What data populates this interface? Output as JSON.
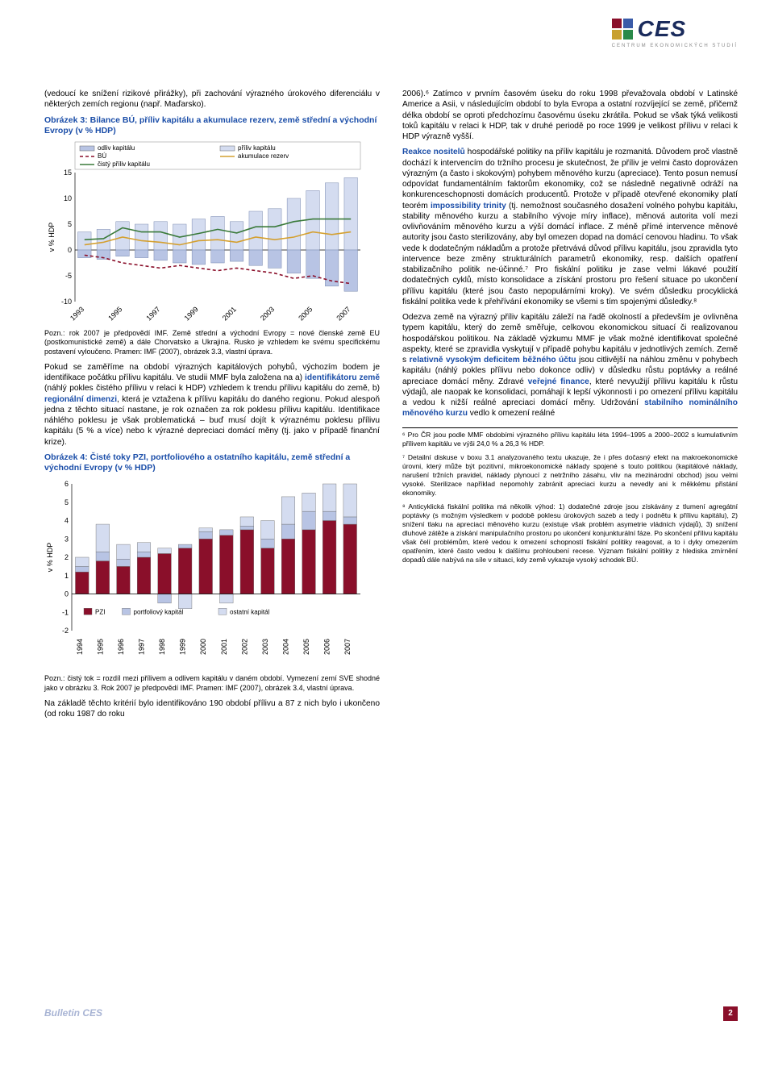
{
  "logo": {
    "text": "CES",
    "subtitle": "CENTRUM EKONOMICKÝCH STUDIÍ",
    "colors": [
      "#8a0f2a",
      "#3a5ba8",
      "#c8a030",
      "#2a8a4a"
    ]
  },
  "left": {
    "intro": "(vedoucí ke snížení rizikové přirážky), při zachování výrazného úrokového diferenciálu v některých zemích regionu (např. Maďarsko).",
    "chart3_title": "Obrázek 3: Bilance BÚ, příliv kapitálu a akumulace rezerv, země střední a východní Evropy (v % HDP)",
    "chart3": {
      "type": "bar+line",
      "y_label": "v % HDP",
      "ylim": [
        -10,
        15
      ],
      "yticks": [
        -10,
        -5,
        0,
        5,
        10,
        15
      ],
      "xticks": [
        "1993",
        "1995",
        "1997",
        "1999",
        "2001",
        "2003",
        "2005",
        "2007"
      ],
      "years": [
        1993,
        1994,
        1995,
        1996,
        1997,
        1998,
        1999,
        2000,
        2001,
        2002,
        2003,
        2004,
        2005,
        2006,
        2007
      ],
      "series": {
        "odliv_kapitalu": {
          "label": "odliv kapitálu",
          "color": "#b8c4e4",
          "type": "bar",
          "values": [
            -1.5,
            -1.8,
            -1.2,
            -1.5,
            -2.0,
            -2.5,
            -2.8,
            -2.5,
            -2.2,
            -3.0,
            -3.5,
            -4.5,
            -5.5,
            -7.0,
            -8.0
          ]
        },
        "priliv_kapitalu": {
          "label": "příliv kapitálu",
          "color": "#d4dcf0",
          "type": "bar",
          "values": [
            3.5,
            4.0,
            5.5,
            5.0,
            5.5,
            5.0,
            6.0,
            6.5,
            5.5,
            7.5,
            8.0,
            10.0,
            11.5,
            13.0,
            14.0
          ]
        },
        "BU": {
          "label": "BÚ",
          "color": "#8a0f2a",
          "type": "line",
          "dash": "4,3",
          "values": [
            -1.0,
            -1.5,
            -2.5,
            -3.0,
            -3.5,
            -3.0,
            -3.5,
            -4.0,
            -3.5,
            -4.0,
            -4.5,
            -5.5,
            -5.0,
            -6.0,
            -6.5
          ]
        },
        "akumulace_rezerv": {
          "label": "akumulace rezerv",
          "color": "#d4a030",
          "type": "line",
          "dash": "none",
          "values": [
            1.0,
            1.5,
            2.5,
            1.8,
            1.5,
            1.0,
            1.8,
            2.0,
            1.5,
            2.5,
            2.0,
            2.5,
            3.5,
            3.0,
            3.5
          ]
        },
        "cisty_priliv": {
          "label": "čistý příliv kapitálu",
          "color": "#3a7a3a",
          "type": "line",
          "dash": "none",
          "values": [
            2.0,
            2.2,
            4.3,
            3.5,
            3.5,
            2.5,
            3.2,
            4.0,
            3.3,
            4.5,
            4.5,
            5.5,
            6.0,
            6.0,
            6.0
          ]
        }
      },
      "background": "#ffffff",
      "grid_color": "#d0d0d0"
    },
    "chart3_note": "Pozn.: rok 2007 je předpovědí IMF. Země střední a východní Evropy = nové členské země EU (postkomunistické země) a dále Chorvatsko a Ukrajina. Rusko je vzhledem ke svému specifickému postavení vyloučeno. Pramen: IMF (2007), obrázek 3.3, vlastní úprava.",
    "para2a": "Pokud se zaměříme na období výrazných kapitálových pohybů, výchozím bodem je identifikace počátku přílivu kapitálu. Ve studii MMF byla založena na a) ",
    "para2_hl1": "identifikátoru země",
    "para2b": " (náhlý pokles čistého přílivu v relaci k HDP) vzhledem k trendu přílivu kapitálu do země, b) ",
    "para2_hl2": "regionální dimenzi",
    "para2c": ", která je vztažena k přílivu kapitálu do daného regionu. Pokud alespoň jedna z těchto situací nastane, je rok označen za rok poklesu přílivu kapitálu. Identifikace náhlého poklesu je však problematická – buď musí dojít k výraznému poklesu přílivu kapitálu (5 % a více) nebo k výrazné depreciaci domácí měny (tj. jako v případě finanční krize).",
    "chart4_title": "Obrázek 4: Čisté toky PZI, portfoliového a ostatního kapitálu, země střední a východní Evropy (v % HDP)",
    "chart4": {
      "type": "bar-stacked",
      "y_label": "v % HDP",
      "ylim": [
        -2,
        6
      ],
      "yticks": [
        -2,
        -1,
        0,
        1,
        2,
        3,
        4,
        5,
        6
      ],
      "years": [
        1994,
        1995,
        1996,
        1997,
        1998,
        1999,
        2000,
        2001,
        2002,
        2003,
        2004,
        2005,
        2006,
        2007
      ],
      "series": {
        "PZI": {
          "label": "PZI",
          "color": "#8a0f2a",
          "values": [
            1.2,
            1.8,
            1.5,
            2.0,
            2.2,
            2.5,
            3.0,
            3.2,
            3.5,
            2.5,
            3.0,
            3.5,
            4.0,
            3.8
          ]
        },
        "portfoliovy": {
          "label": "portfoliový kapitál",
          "color": "#b8c4e4",
          "values": [
            0.3,
            0.5,
            0.4,
            0.3,
            -0.5,
            0.2,
            0.4,
            0.3,
            0.2,
            0.5,
            0.8,
            1.0,
            0.5,
            0.4
          ]
        },
        "ostatni": {
          "label": "ostatní kapitál",
          "color": "#d4dcf0",
          "values": [
            0.5,
            1.5,
            0.8,
            0.5,
            0.3,
            -0.8,
            0.2,
            -0.5,
            0.5,
            1.0,
            1.5,
            1.0,
            1.5,
            1.8
          ]
        }
      },
      "background": "#ffffff"
    },
    "chart4_note": "Pozn.: čistý tok = rozdíl mezi přílivem a odlivem kapitálu v daném období. Vymezení zemí SVE shodné jako v obrázku 3. Rok 2007 je předpovědí IMF. Pramen: IMF (2007), obrázek 3.4, vlastní úprava.",
    "para3": "Na základě těchto kritérií bylo identifikováno 190 období přílivu a 87 z nich bylo i ukončeno (od roku 1987 do roku"
  },
  "right": {
    "para1": "2006).⁶ Zatímco v prvním časovém úseku do roku 1998 převažovala období v Latinské Americe a Asii, v následujícím období to byla Evropa a ostatní rozvíjející se země, přičemž délka období se oproti předchozímu časovému úseku zkrátila. Pokud se však týká velikosti toků kapitálu v relaci k HDP, tak v druhé periodě po roce 1999 je velikost přílivu v relaci k HDP výrazně vyšší.",
    "para2_hl": "Reakce nositelů",
    "para2": " hospodářské politiky na příliv kapitálu je rozmanitá. Důvodem proč vlastně dochází k intervencím do tržního procesu je skutečnost, že příliv je velmi často doprovázen výrazným (a často i skokovým) pohybem měnového kurzu (apreciace). Tento posun nemusí odpovídat fundamentálním faktorům ekonomiky, což se následně negativně odráží na konkurenceschopnosti domácích producentů. Protože v případě otevřené ekonomiky platí teorém ",
    "para2_hl2": "impossibility trinity",
    "para2b": " (tj. nemožnost současného dosažení volného pohybu kapitálu, stability měnového kurzu a stabilního vývoje míry inflace), měnová autorita volí mezi ovlivňováním měnového kurzu a výší domácí inflace. Z méně přímé intervence měnové autority jsou často sterilizovány, aby byl omezen dopad na domácí cenovou hladinu. To však vede k dodatečným nákladům a protože přetrvává důvod přílivu kapitálu, jsou zpravidla tyto intervence beze změny strukturálních parametrů ekonomiky, resp. dalších opatření stabilizačního politik ne-účinné.⁷ Pro fiskální politiku je zase velmi lákavé použití dodatečných cyklů, místo konsolidace a získání prostoru pro řešení situace po ukončení přílivu kapitálu (které jsou často nepopulárními kroky). Ve svém důsledku procyklická fiskální politika vede k přehřívání ekonomiky se všemi s tím spojenými důsledky.⁸",
    "para3": "Odezva země na výrazný příliv kapitálu záleží na řadě okolností a především je ovlivněna typem kapitálu, který do země směřuje, celkovou ekonomickou situací či realizovanou hospodářskou politikou. Na základě výzkumu MMF je však možné identifikovat společné aspekty, které se zpravidla vyskytují v případě pohybu kapitálu v jednotlivých zemích. Země s ",
    "para3_hl": "relativně vysokým deficitem běžného účtu",
    "para3b": " jsou citlivější na náhlou změnu v pohybech kapitálu (náhlý pokles přílivu nebo dokonce odliv) v důsledku růstu poptávky a reálné apreciace domácí měny. Zdravé ",
    "para3_hl2": "veřejné finance",
    "para3c": ", které nevyužijí přílivu kapitálu k růstu výdajů, ale naopak ke konsolidaci, pomáhají k lepší výkonnosti i po omezení přílivu kapitálu a vedou k nižší reálné apreciaci domácí měny. Udržování ",
    "para3_hl3": "stabilního nominálního měnového kurzu",
    "para3d": " vedlo k omezení reálné"
  },
  "footnotes": {
    "fn6": "⁶ Pro ČR jsou podle MMF obdobími výrazného přílivu kapitálu léta 1994–1995 a 2000–2002 s kumulativním přílivem kapitálu ve výši 24,0 % a 26,3 % HDP.",
    "fn7": "⁷ Detailní diskuse v boxu 3.1 analyzovaného textu ukazuje, že i přes dočasný efekt na makroekonomické úrovni, který může být pozitivní, mikroekonomické náklady spojené s touto politikou (kapitálové náklady, narušení tržních pravidel, náklady plynoucí z netržního zásahu, vliv na mezinárodní obchod) jsou velmi vysoké. Sterilizace například nepomohly zabránit apreciaci kurzu a nevedly ani k měkkému přistání ekonomiky.",
    "fn8": "⁸ Anticyklická fiskální politika má několik výhod: 1) dodatečné zdroje jsou získávány z tlumení agregátní poptávky (s možným výsledkem v podobě poklesu úrokových sazeb a tedy i podnětu k přílivu kapitálu), 2) snížení tlaku na apreciaci měnového kurzu (existuje však problém asymetrie vládních výdajů), 3) snížení dluhové zátěže a získání manipulačního prostoru po ukončení konjunkturální fáze. Po skončení přílivu kapitálu však čelí problémům, které vedou k omezení schopností fiskální politiky reagovat, a to i dyky omezením opatřením, které často vedou k dalšímu prohloubení recese. Význam fiskální politiky z hlediska zmírnění dopadů dále nabývá na síle v situaci, kdy země vykazuje vysoký schodek BÚ."
  },
  "footer": {
    "left": "Bulletin CES",
    "page": "2"
  }
}
